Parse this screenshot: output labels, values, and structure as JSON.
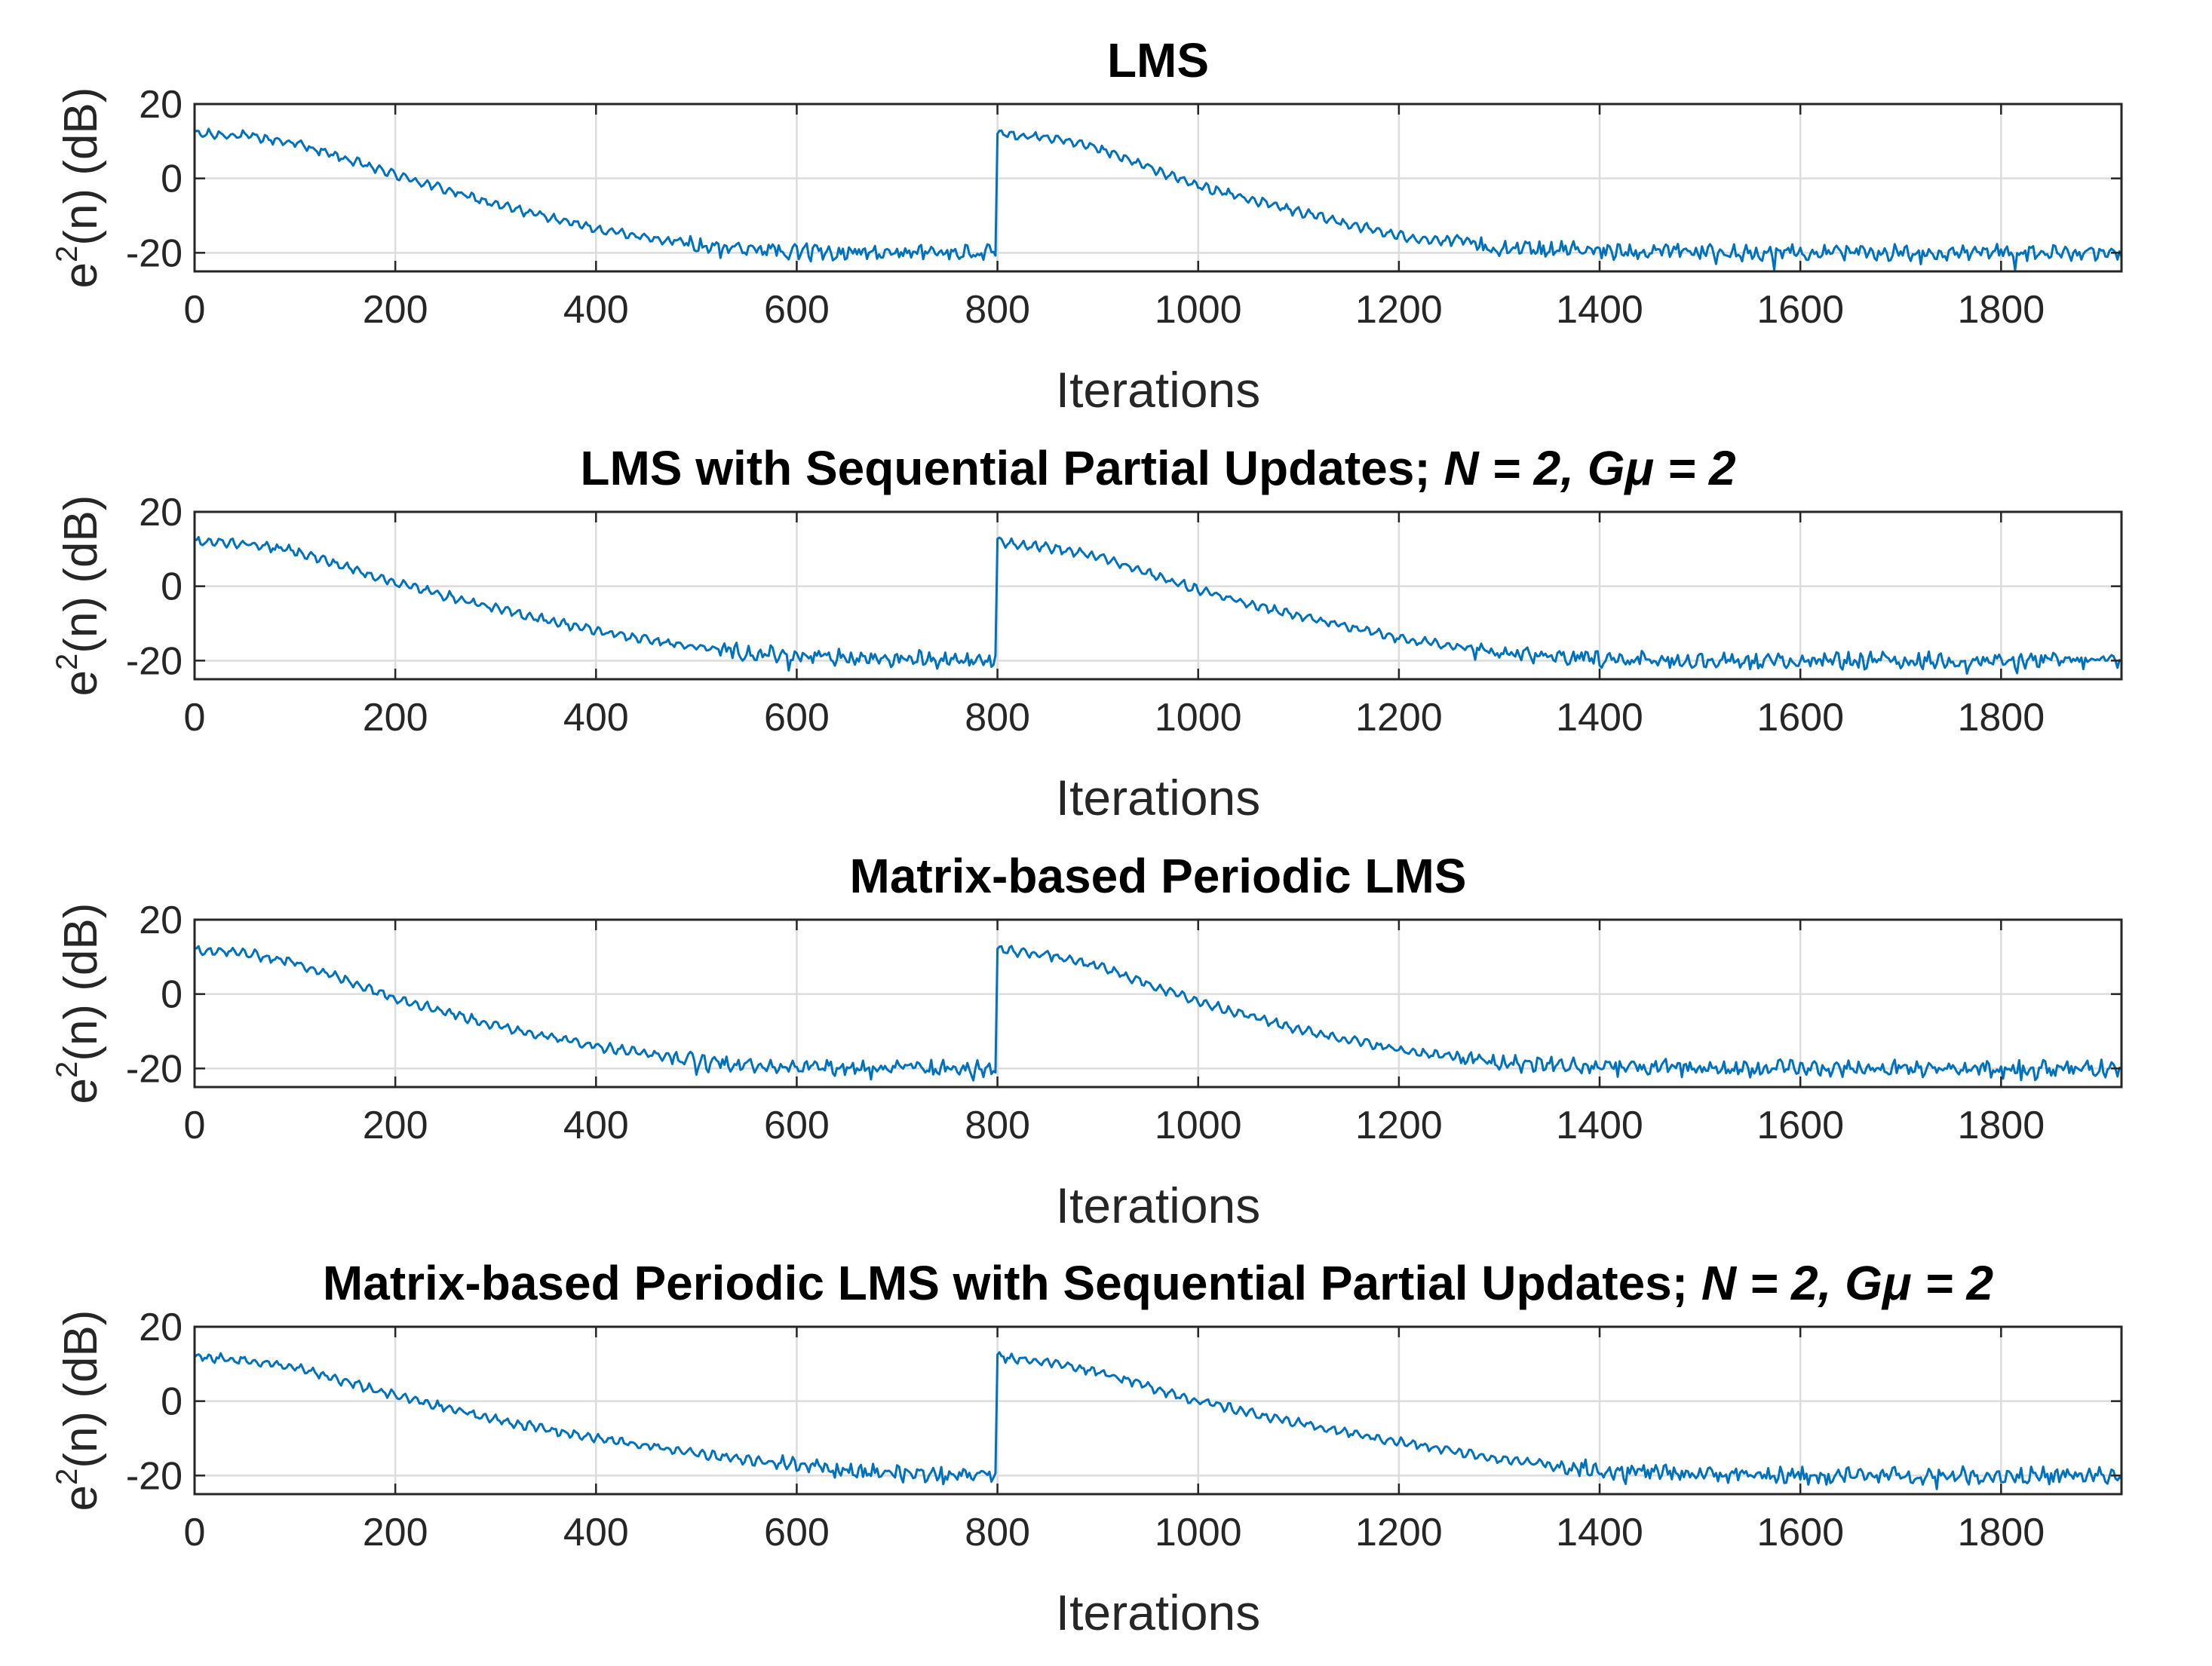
{
  "figure_colors": {
    "series": "#0072BD",
    "axes": "#262626",
    "grid": "#dcdcdc"
  },
  "chart_data": [
    {
      "type": "line",
      "title": "LMS",
      "title_italic": "",
      "xlabel": "Iterations",
      "ylabel": {
        "base": "e",
        "sup": "2",
        "rest": "(n) (dB)"
      },
      "xlim": [
        0,
        1920
      ],
      "ylim": [
        -25,
        20
      ],
      "xticks": [
        0,
        200,
        400,
        600,
        800,
        1000,
        1200,
        1400,
        1600,
        1800
      ],
      "xtick_labels": [
        "0",
        "200",
        "400",
        "600",
        "800",
        "1000",
        "1200",
        "1400",
        "1600",
        "1800"
      ],
      "yticks": [
        20,
        0,
        -20
      ],
      "ytick_labels": [
        "20",
        "0",
        "-20"
      ],
      "grid": true,
      "series": [
        {
          "name": "e^2(n)",
          "x": [
            0,
            50,
            100,
            200,
            300,
            400,
            500,
            600,
            700,
            799,
            800,
            850,
            900,
            1000,
            1100,
            1200,
            1300,
            1400,
            1500,
            1600,
            1700,
            1800,
            1920
          ],
          "values": [
            12,
            11.5,
            9.5,
            1,
            -7,
            -13.5,
            -18,
            -19.5,
            -20,
            -20,
            12,
            11,
            8,
            -2,
            -9,
            -15.5,
            -18.5,
            -19.5,
            -19.8,
            -20,
            -20,
            -20,
            -20
          ]
        }
      ]
    },
    {
      "type": "line",
      "title": "LMS with Sequential Partial Updates; ",
      "title_italic": "N = 2, Gμ = 2",
      "xlabel": "Iterations",
      "ylabel": {
        "base": "e",
        "sup": "2",
        "rest": "(n) (dB)"
      },
      "xlim": [
        0,
        1920
      ],
      "ylim": [
        -25,
        20
      ],
      "xticks": [
        0,
        200,
        400,
        600,
        800,
        1000,
        1200,
        1400,
        1600,
        1800
      ],
      "xtick_labels": [
        "0",
        "200",
        "400",
        "600",
        "800",
        "1000",
        "1200",
        "1400",
        "1600",
        "1800"
      ],
      "yticks": [
        20,
        0,
        -20
      ],
      "ytick_labels": [
        "20",
        "0",
        "-20"
      ],
      "grid": true,
      "series": [
        {
          "name": "e^2(n)",
          "x": [
            0,
            50,
            100,
            200,
            300,
            400,
            500,
            600,
            700,
            799,
            800,
            850,
            900,
            1000,
            1100,
            1200,
            1300,
            1400,
            1500,
            1600,
            1700,
            1800,
            1920
          ],
          "values": [
            12,
            11.5,
            9.5,
            1,
            -6,
            -12,
            -16.5,
            -19,
            -19.5,
            -19.5,
            12,
            10.5,
            8,
            -1,
            -8,
            -14,
            -18,
            -19.5,
            -19.8,
            -20,
            -20,
            -20,
            -20
          ]
        }
      ]
    },
    {
      "type": "line",
      "title": "Matrix-based Periodic LMS",
      "title_italic": "",
      "xlabel": "Iterations",
      "ylabel": {
        "base": "e",
        "sup": "2",
        "rest": "(n) (dB)"
      },
      "xlim": [
        0,
        1920
      ],
      "ylim": [
        -25,
        20
      ],
      "xticks": [
        0,
        200,
        400,
        600,
        800,
        1000,
        1200,
        1400,
        1600,
        1800
      ],
      "xtick_labels": [
        "0",
        "200",
        "400",
        "600",
        "800",
        "1000",
        "1200",
        "1400",
        "1600",
        "1800"
      ],
      "yticks": [
        20,
        0,
        -20
      ],
      "ytick_labels": [
        "20",
        "0",
        "-20"
      ],
      "grid": true,
      "series": [
        {
          "name": "e^2(n)",
          "x": [
            0,
            50,
            100,
            200,
            300,
            400,
            500,
            600,
            700,
            799,
            800,
            850,
            900,
            1000,
            1100,
            1200,
            1300,
            1400,
            1500,
            1600,
            1700,
            1800,
            1920
          ],
          "values": [
            12,
            11,
            8.5,
            -1,
            -8.5,
            -14,
            -18,
            -19.5,
            -20,
            -20,
            12,
            10.5,
            7.5,
            -2,
            -9.5,
            -15,
            -18.5,
            -19.5,
            -20,
            -20,
            -20,
            -20,
            -20
          ]
        }
      ]
    },
    {
      "type": "line",
      "title": "Matrix-based Periodic LMS with Sequential Partial Updates; ",
      "title_italic": "N = 2, Gμ = 2",
      "xlabel": "Iterations",
      "ylabel": {
        "base": "e",
        "sup": "2",
        "rest": "(n) (dB)"
      },
      "xlim": [
        0,
        1920
      ],
      "ylim": [
        -25,
        20
      ],
      "xticks": [
        0,
        200,
        400,
        600,
        800,
        1000,
        1200,
        1400,
        1600,
        1800
      ],
      "xtick_labels": [
        "0",
        "200",
        "400",
        "600",
        "800",
        "1000",
        "1200",
        "1400",
        "1600",
        "1800"
      ],
      "yticks": [
        20,
        0,
        -20
      ],
      "ytick_labels": [
        "20",
        "0",
        "-20"
      ],
      "grid": true,
      "series": [
        {
          "name": "e^2(n)",
          "x": [
            0,
            50,
            100,
            200,
            300,
            400,
            500,
            600,
            700,
            799,
            800,
            850,
            900,
            1000,
            1100,
            1200,
            1300,
            1400,
            1500,
            1600,
            1700,
            1800,
            1920
          ],
          "values": [
            12,
            11,
            9,
            1.5,
            -5,
            -10,
            -14,
            -17.5,
            -19.5,
            -19.5,
            12,
            10.5,
            8,
            0,
            -6,
            -11,
            -15.5,
            -18.5,
            -19.5,
            -20,
            -20,
            -20,
            -20
          ]
        }
      ]
    }
  ]
}
